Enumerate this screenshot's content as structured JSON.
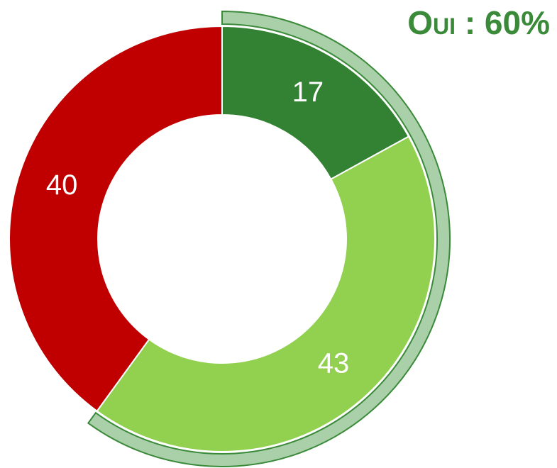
{
  "chart_data": {
    "type": "donut",
    "categories": [
      null,
      null,
      null
    ],
    "values": [
      17,
      43,
      40
    ],
    "colors": [
      "#338233",
      "#92d050",
      "#c00000"
    ],
    "annotation": "Oui : 60%",
    "highlight_color": "#a9d0a9",
    "highlight_stroke": "#3a8a3a"
  }
}
